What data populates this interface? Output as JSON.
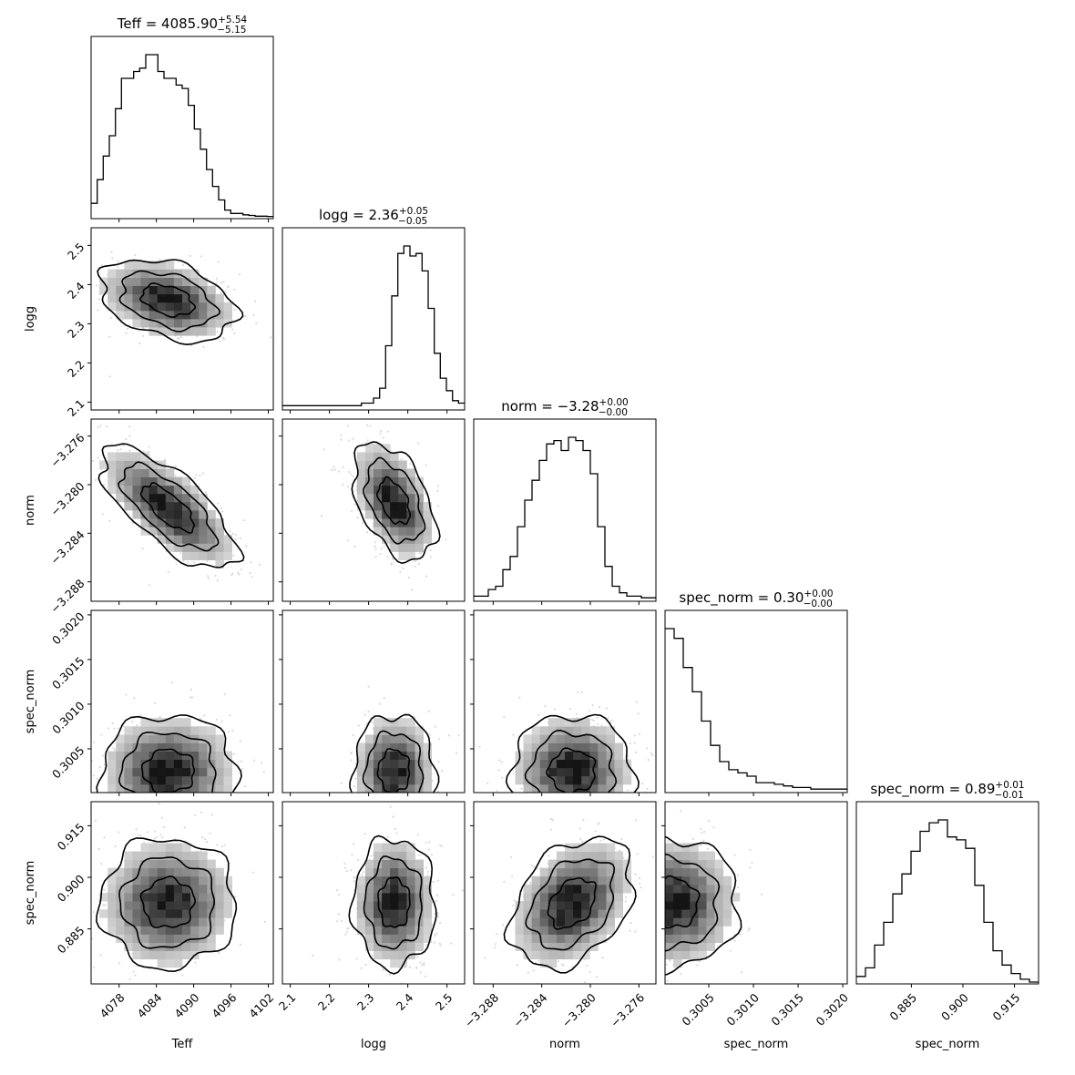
{
  "chart_data": {
    "type": "corner",
    "parameters": [
      {
        "name": "Teff",
        "label": "Teff",
        "title_name": "Teff",
        "median": "4085.90",
        "plus": "+5.54",
        "minus": "−5.15",
        "range": [
          4073.5,
          4102.8
        ],
        "ticks": [
          4078,
          4084,
          4090,
          4096,
          4102
        ],
        "tick_labels": [
          "4078",
          "4084",
          "4090",
          "4096",
          "4102"
        ]
      },
      {
        "name": "logg",
        "label": "logg",
        "title_name": "logg",
        "median": "2.36",
        "plus": "+0.05",
        "minus": "−0.05",
        "range": [
          2.08,
          2.545
        ],
        "ticks": [
          2.1,
          2.2,
          2.3,
          2.4,
          2.5
        ],
        "tick_labels": [
          "2.1",
          "2.2",
          "2.3",
          "2.4",
          "2.5"
        ]
      },
      {
        "name": "norm",
        "label": "norm",
        "title_name": "norm",
        "median": "−3.28",
        "plus": "+0.00",
        "minus": "−0.00",
        "range": [
          -3.2896,
          -3.2746
        ],
        "ticks": [
          -3.288,
          -3.284,
          -3.28,
          -3.276
        ],
        "tick_labels": [
          "−3.288",
          "−3.284",
          "−3.280",
          "−3.276"
        ]
      },
      {
        "name": "spec_norm",
        "label": "spec_norm",
        "title_name": "spec_norm",
        "median": "0.30",
        "plus": "+0.00",
        "minus": "−0.00",
        "range": [
          0.30001,
          0.30205
        ],
        "ticks": [
          0.3005,
          0.301,
          0.3015,
          0.302
        ],
        "tick_labels": [
          "0.3005",
          "0.3010",
          "0.3015",
          "0.3020"
        ]
      },
      {
        "name": "spec_norm_2",
        "label": "spec_norm",
        "title_name": "spec_norm",
        "median": "0.89",
        "plus": "+0.01",
        "minus": "−0.01",
        "range": [
          0.869,
          0.922
        ],
        "ticks": [
          0.885,
          0.9,
          0.915
        ],
        "tick_labels": [
          "0.885",
          "0.900",
          "0.915"
        ]
      }
    ],
    "histograms": [
      [
        4,
        11,
        18,
        24,
        32,
        41,
        41,
        43,
        44,
        48,
        48,
        43,
        41,
        41,
        39,
        38,
        33,
        26,
        20,
        14,
        9,
        5,
        2,
        1,
        1,
        0.6,
        0.4,
        0.2,
        0.2,
        0.1
      ],
      [
        1,
        1,
        1,
        1,
        1,
        1,
        1,
        1,
        1,
        1,
        1,
        1,
        1,
        2,
        2,
        4,
        8,
        25,
        45,
        62,
        65,
        61,
        62,
        55,
        40,
        22,
        12,
        7,
        3,
        2
      ],
      [
        1,
        1,
        3,
        4,
        9,
        13,
        22,
        30,
        36,
        42,
        47,
        48,
        45,
        49,
        48,
        45,
        38,
        22,
        10,
        4,
        2,
        1,
        1,
        0.5,
        0.5
      ],
      [
        100,
        94,
        76,
        61,
        43,
        28,
        18,
        13,
        11,
        9,
        5,
        5,
        4,
        3,
        2,
        2,
        1,
        1,
        1,
        1
      ],
      [
        2,
        5,
        13,
        21,
        31,
        38,
        46,
        53,
        56,
        57,
        51,
        50,
        47,
        34,
        21,
        11,
        6,
        3,
        1,
        0
      ]
    ],
    "blobs": [
      {
        "pair": [
          1,
          0
        ],
        "center": [
          4085.8,
          2.36
        ],
        "sd": [
          5.2,
          0.05
        ],
        "corr": -0.35
      },
      {
        "pair": [
          2,
          0
        ],
        "center": [
          4085.9,
          -3.2819
        ],
        "sd": [
          5.2,
          0.0024
        ],
        "corr": -0.72
      },
      {
        "pair": [
          2,
          1
        ],
        "center": [
          2.365,
          -3.2814
        ],
        "sd": [
          0.05,
          0.0023
        ],
        "corr": -0.45
      },
      {
        "pair": [
          3,
          0
        ],
        "center": [
          4086.0,
          0.30025
        ],
        "sd": [
          5.2,
          0.0003
        ],
        "corr": 0
      },
      {
        "pair": [
          3,
          1
        ],
        "center": [
          2.365,
          0.30025
        ],
        "sd": [
          0.05,
          0.0003
        ],
        "corr": 0
      },
      {
        "pair": [
          3,
          2
        ],
        "center": [
          -3.2815,
          0.30025
        ],
        "sd": [
          0.0024,
          0.0003
        ],
        "corr": 0
      },
      {
        "pair": [
          4,
          0
        ],
        "center": [
          4085.9,
          0.8925
        ],
        "sd": [
          5.2,
          0.009
        ],
        "corr": 0
      },
      {
        "pair": [
          4,
          1
        ],
        "center": [
          2.365,
          0.8925
        ],
        "sd": [
          0.05,
          0.009
        ],
        "corr": 0
      },
      {
        "pair": [
          4,
          2
        ],
        "center": [
          -3.2815,
          0.8925
        ],
        "sd": [
          0.0024,
          0.009
        ],
        "corr": 0.35
      },
      {
        "pair": [
          4,
          3
        ],
        "center": [
          0.3001,
          0.8925
        ],
        "sd": [
          0.00035,
          0.009
        ],
        "corr": 0
      }
    ],
    "colors": {
      "line": "#000000",
      "background": "#ffffff",
      "points": "#d9d9d9"
    }
  }
}
